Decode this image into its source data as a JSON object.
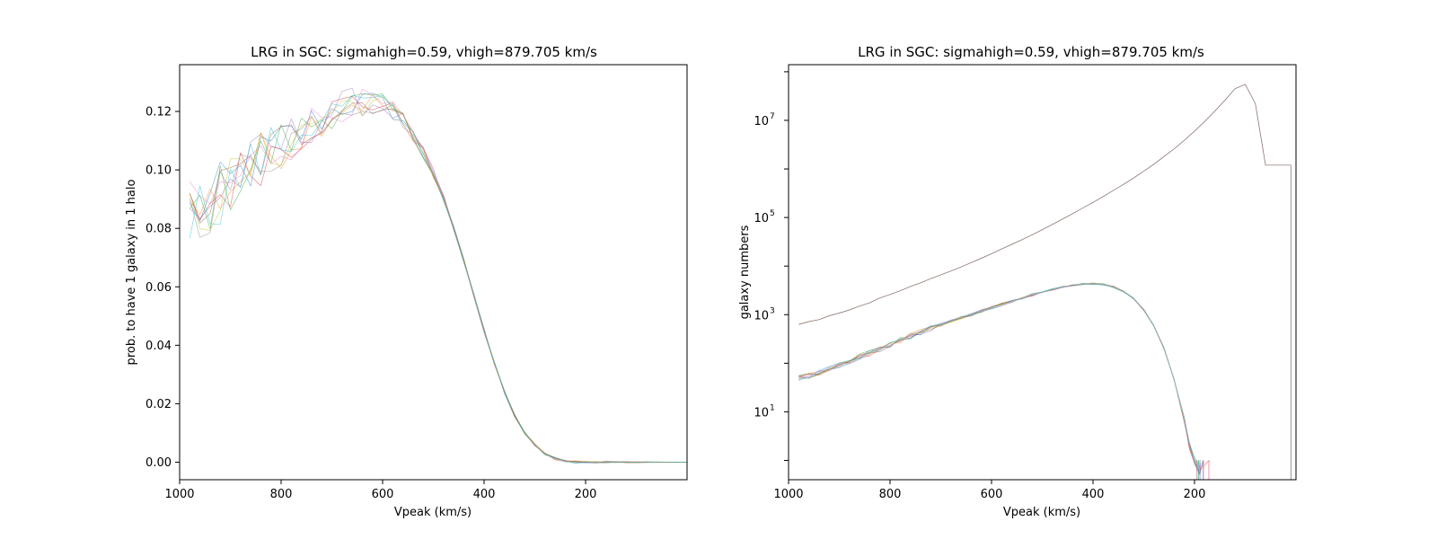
{
  "chart_data": [
    {
      "type": "line",
      "title": "LRG in SGC: sigmahigh=0.59, vhigh=879.705 km/s",
      "xlabel": "Vpeak (km/s)",
      "ylabel": "prob. to have 1 galaxy in 1 halo",
      "xlim": [
        1000,
        0
      ],
      "ylim": [
        -0.006,
        0.136
      ],
      "x_ticks": [
        1000,
        800,
        600,
        400,
        200
      ],
      "x_tick_labels": [
        "1000",
        "800",
        "600",
        "400",
        "200"
      ],
      "y_ticks": [
        0.0,
        0.02,
        0.04,
        0.06,
        0.08,
        0.1,
        0.12
      ],
      "y_tick_labels": [
        "0.00",
        "0.02",
        "0.04",
        "0.06",
        "0.08",
        "0.10",
        "0.12"
      ],
      "log_y": false,
      "legend": "none",
      "grid": false,
      "mean_curve": {
        "x": [
          980,
          960,
          940,
          920,
          900,
          880,
          860,
          840,
          820,
          800,
          780,
          760,
          740,
          720,
          700,
          680,
          660,
          640,
          620,
          600,
          580,
          560,
          540,
          520,
          500,
          480,
          460,
          440,
          420,
          400,
          380,
          360,
          340,
          320,
          300,
          280,
          260,
          240,
          220,
          200,
          180,
          160,
          140,
          120,
          100,
          80,
          60,
          40,
          20,
          0
        ],
        "y": [
          0.085,
          0.087,
          0.089,
          0.092,
          0.095,
          0.098,
          0.101,
          0.104,
          0.106,
          0.109,
          0.111,
          0.113,
          0.116,
          0.118,
          0.12,
          0.122,
          0.123,
          0.123,
          0.123,
          0.122,
          0.12,
          0.117,
          0.112,
          0.106,
          0.099,
          0.09,
          0.08,
          0.069,
          0.057,
          0.045,
          0.034,
          0.024,
          0.016,
          0.01,
          0.006,
          0.003,
          0.0012,
          0.0004,
          0.0001,
          0.0,
          0.0,
          0.0,
          0.0,
          0.0,
          0.0,
          0.0,
          0.0,
          0.0,
          0.0,
          0.0
        ]
      },
      "noise_amplitude": {
        "x": [
          1000,
          800,
          700,
          600,
          520,
          450,
          0
        ],
        "y": [
          0.012,
          0.009,
          0.006,
          0.004,
          0.002,
          0.0008,
          0.0
        ]
      },
      "n_realizations": 10,
      "series_colors": [
        "#1f77b4",
        "#ff7f0e",
        "#2ca02c",
        "#d62728",
        "#9467bd",
        "#8c564b",
        "#e377c2",
        "#7f7f7f",
        "#bcbd22",
        "#17becf"
      ]
    },
    {
      "type": "line",
      "title": "LRG in SGC: sigmahigh=0.59, vhigh=879.705 km/s",
      "xlabel": "Vpeak (km/s)",
      "ylabel": "galaxy numbers",
      "xlim": [
        1000,
        0
      ],
      "ylim": [
        0.4,
        140000000
      ],
      "log_y": true,
      "x_ticks": [
        1000,
        800,
        600,
        400,
        200
      ],
      "x_tick_labels": [
        "1000",
        "800",
        "600",
        "400",
        "200"
      ],
      "y_ticks": [
        10,
        1000,
        100000,
        10000000
      ],
      "y_tick_labels": [
        {
          "base": "10",
          "exp": "1"
        },
        {
          "base": "10",
          "exp": "3"
        },
        {
          "base": "10",
          "exp": "5"
        },
        {
          "base": "10",
          "exp": "7"
        }
      ],
      "legend": "none",
      "grid": false,
      "halo_curve": {
        "color": "#7f7f7f",
        "x": [
          980,
          960,
          940,
          920,
          900,
          880,
          860,
          840,
          820,
          800,
          780,
          760,
          740,
          720,
          700,
          680,
          660,
          640,
          620,
          600,
          580,
          560,
          540,
          520,
          500,
          480,
          460,
          440,
          420,
          400,
          380,
          360,
          340,
          320,
          300,
          280,
          260,
          240,
          220,
          200,
          180,
          160,
          140,
          120,
          100,
          80,
          60,
          40,
          20,
          10
        ],
        "y": [
          630,
          720,
          790,
          950,
          1080,
          1250,
          1500,
          1750,
          2200,
          2600,
          3100,
          3800,
          4500,
          5500,
          6600,
          7900,
          9600,
          11800,
          14500,
          18000,
          22500,
          28000,
          35000,
          44000,
          56000,
          72000,
          93000,
          120000,
          157000,
          205000,
          270000,
          360000,
          480000,
          650000,
          900000,
          1250000,
          1800000,
          2600000,
          3900000,
          6000000,
          9500000,
          15500000,
          26000000,
          45000000,
          55000000,
          22000000,
          1200000,
          1200000,
          1200000,
          1200000
        ]
      },
      "halo_drop_x": 10,
      "galaxy_curve": {
        "x": [
          980,
          960,
          940,
          920,
          900,
          880,
          860,
          840,
          820,
          800,
          780,
          760,
          740,
          720,
          700,
          680,
          660,
          640,
          620,
          600,
          580,
          560,
          540,
          520,
          500,
          480,
          460,
          440,
          420,
          400,
          380,
          360,
          340,
          320,
          300,
          280,
          260,
          240,
          220,
          210,
          200,
          190
        ],
        "y": [
          50,
          56,
          65,
          76,
          92,
          110,
          135,
          160,
          190,
          240,
          300,
          360,
          430,
          520,
          620,
          740,
          860,
          1000,
          1180,
          1380,
          1620,
          1880,
          2200,
          2550,
          2900,
          3300,
          3700,
          4050,
          4300,
          4350,
          4200,
          3750,
          3000,
          2150,
          1250,
          580,
          200,
          45,
          7,
          2,
          1,
          0.6
        ]
      },
      "galaxy_drop_x_range": [
        200,
        170
      ],
      "n_realizations": 10,
      "series_colors": [
        "#1f77b4",
        "#ff7f0e",
        "#2ca02c",
        "#d62728",
        "#9467bd",
        "#8c564b",
        "#e377c2",
        "#bcbd22",
        "#17becf",
        "#aec7e8"
      ]
    }
  ]
}
